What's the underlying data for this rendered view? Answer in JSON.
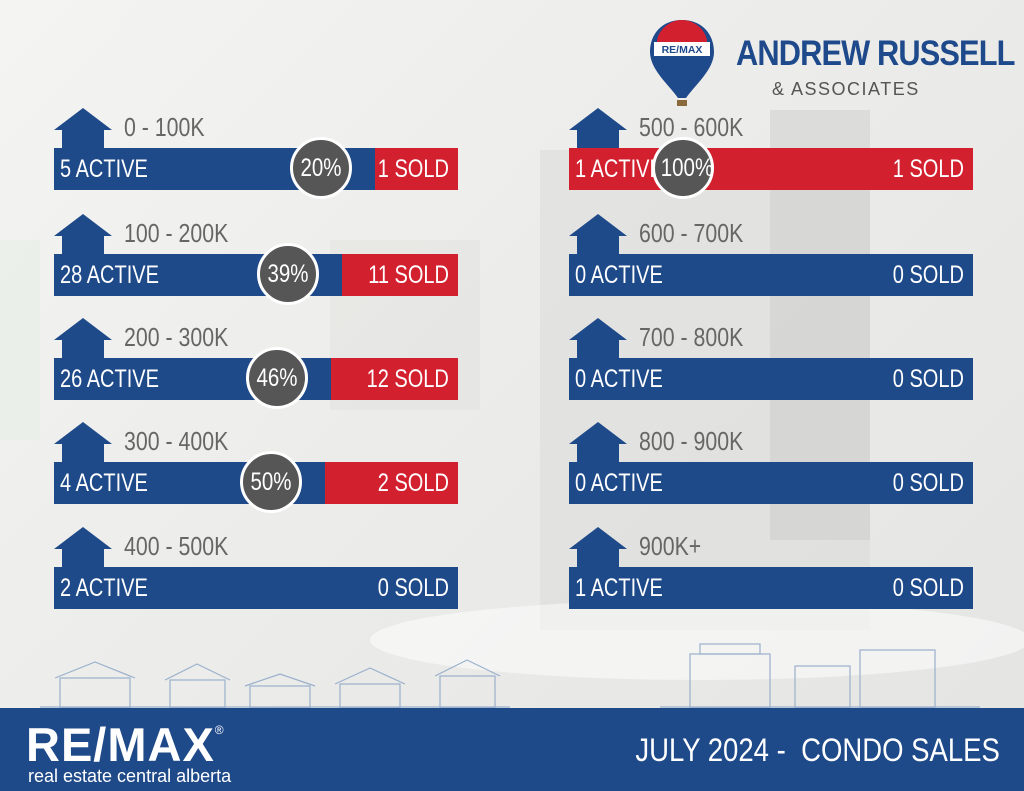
{
  "header": {
    "balloon_text": "RE/MAX",
    "name": "ANDREW RUSSELL",
    "subtitle": "& ASSOCIATES"
  },
  "colors": {
    "blue": "#1f4a8a",
    "red": "#d3202f",
    "circle": "#565656"
  },
  "rows": [
    {
      "range": "0 - 100K",
      "active": "5 ACTIVE",
      "sold": "1 SOLD",
      "percent": "20%",
      "sold_ratio": 0.2
    },
    {
      "range": "100 - 200K",
      "active": "28 ACTIVE",
      "sold": "11 SOLD",
      "percent": "39%",
      "sold_ratio": 0.39
    },
    {
      "range": "200 - 300K",
      "active": "26 ACTIVE",
      "sold": "12 SOLD",
      "percent": "46%",
      "sold_ratio": 0.46
    },
    {
      "range": "300 - 400K",
      "active": "4 ACTIVE",
      "sold": "2 SOLD",
      "percent": "50%",
      "sold_ratio": 0.5
    },
    {
      "range": "400 - 500K",
      "active": "2 ACTIVE",
      "sold": "0 SOLD",
      "percent": "",
      "sold_ratio": 0
    },
    {
      "range": "500 - 600K",
      "active": "1 ACTIVE",
      "sold": "1 SOLD",
      "percent": "100%",
      "sold_ratio": 1
    },
    {
      "range": "600 - 700K",
      "active": "0 ACTIVE",
      "sold": "0 SOLD",
      "percent": "",
      "sold_ratio": 0
    },
    {
      "range": "700 - 800K",
      "active": "0 ACTIVE",
      "sold": "0 SOLD",
      "percent": "",
      "sold_ratio": 0
    },
    {
      "range": "800 - 900K",
      "active": "0 ACTIVE",
      "sold": "0 SOLD",
      "percent": "",
      "sold_ratio": 0
    },
    {
      "range": "900K+",
      "active": "1 ACTIVE",
      "sold": "0 SOLD",
      "percent": "",
      "sold_ratio": 0
    }
  ],
  "footer": {
    "logo": "RE/MAX",
    "logo_mark": "®",
    "tagline": "real estate central alberta",
    "period": "JULY 2024 -  CONDO SALES"
  }
}
